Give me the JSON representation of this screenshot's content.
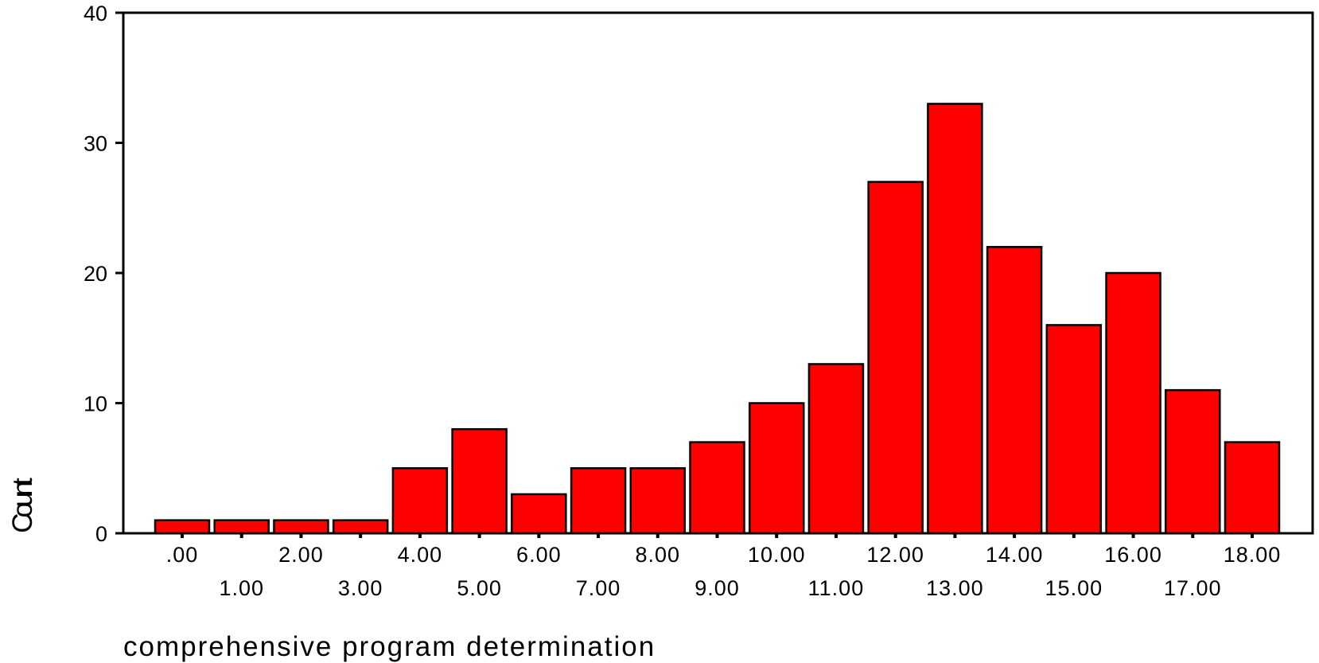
{
  "chart_data": {
    "type": "bar",
    "categories": [
      ".00",
      "1.00",
      "2.00",
      "3.00",
      "4.00",
      "5.00",
      "6.00",
      "7.00",
      "8.00",
      "9.00",
      "10.00",
      "11.00",
      "12.00",
      "13.00",
      "14.00",
      "15.00",
      "16.00",
      "17.00",
      "18.00"
    ],
    "series": [
      {
        "values": [
          1,
          1,
          1,
          1,
          5,
          8,
          3,
          5,
          5,
          7,
          10,
          13,
          27,
          33,
          22,
          16,
          20,
          11,
          7
        ]
      }
    ],
    "xlabel": "comprehensive program determination",
    "ylabel": "Count",
    "ylim": [
      0,
      40
    ],
    "yticks": [
      "0",
      "10",
      "20",
      "30",
      "40"
    ],
    "grid": false,
    "colors": {
      "bar_fill": "#ff0000",
      "bar_stroke": "#000000",
      "axis": "#000000"
    }
  }
}
